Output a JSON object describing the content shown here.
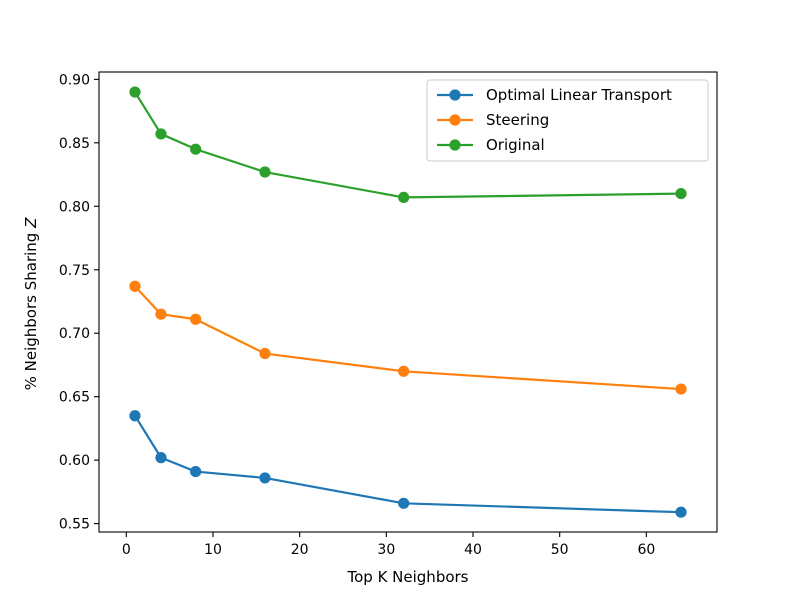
{
  "chart_data": {
    "type": "line",
    "title": "",
    "xlabel": "Top K Neighbors",
    "ylabel_prefix": "% Neighbors Sharing ",
    "ylabel_var": "Z",
    "xlim": [
      -3.15,
      68.15
    ],
    "ylim": [
      0.5434,
      0.9058
    ],
    "x": [
      1,
      4,
      8,
      16,
      32,
      64
    ],
    "xticks": [
      0,
      10,
      20,
      30,
      40,
      50,
      60
    ],
    "yticks": [
      0.55,
      0.6,
      0.65,
      0.7,
      0.75,
      0.8,
      0.85,
      0.9
    ],
    "xtick_labels": [
      "0",
      "10",
      "20",
      "30",
      "40",
      "50",
      "60"
    ],
    "ytick_labels": [
      "0.55",
      "0.60",
      "0.65",
      "0.70",
      "0.75",
      "0.80",
      "0.85",
      "0.90"
    ],
    "legend_position": "top-right",
    "series": [
      {
        "name": "Optimal Linear Transport",
        "color": "#1f77b4",
        "values": [
          0.635,
          0.602,
          0.591,
          0.586,
          0.566,
          0.559
        ]
      },
      {
        "name": "Steering",
        "color": "#ff7f0e",
        "values": [
          0.737,
          0.715,
          0.711,
          0.684,
          0.67,
          0.656
        ]
      },
      {
        "name": "Original",
        "color": "#2ca02c",
        "values": [
          0.89,
          0.857,
          0.845,
          0.827,
          0.807,
          0.81
        ]
      }
    ]
  }
}
